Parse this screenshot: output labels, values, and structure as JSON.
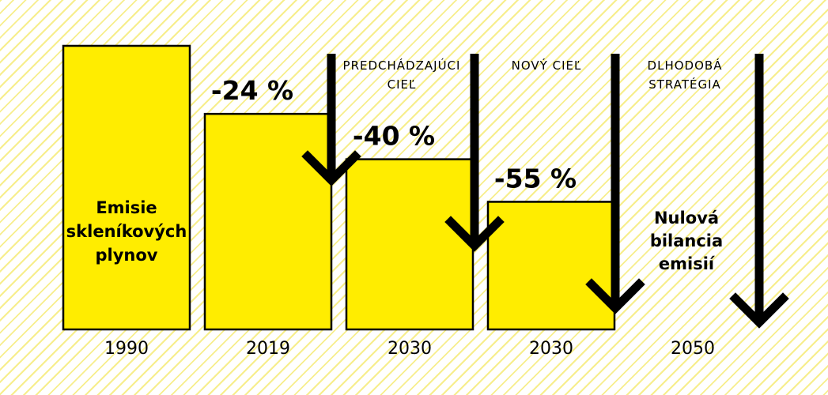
{
  "chart_data": {
    "type": "bar",
    "categories": [
      "1990",
      "2019",
      "2030",
      "2030",
      "2050"
    ],
    "values": [
      100,
      76,
      60,
      45,
      0
    ],
    "unit": "%",
    "ylim": [
      0,
      100
    ],
    "bar_color": "#ffed00",
    "base_label": [
      "Emisie",
      "skleníkových",
      "plynov"
    ],
    "change_labels": [
      "",
      "-24 %",
      "-40 %",
      "-55 %",
      ""
    ],
    "captions": [
      "",
      "",
      [
        "PREDCHÁDZAJÚCI",
        "CIEĽ"
      ],
      [
        "NOVÝ CIEĽ"
      ],
      [
        "DLHODOBÁ",
        "STRATÉGIA"
      ]
    ],
    "end_label": [
      "Nulová",
      "bilancia",
      "emisií"
    ],
    "grid": false,
    "legend": "none"
  }
}
